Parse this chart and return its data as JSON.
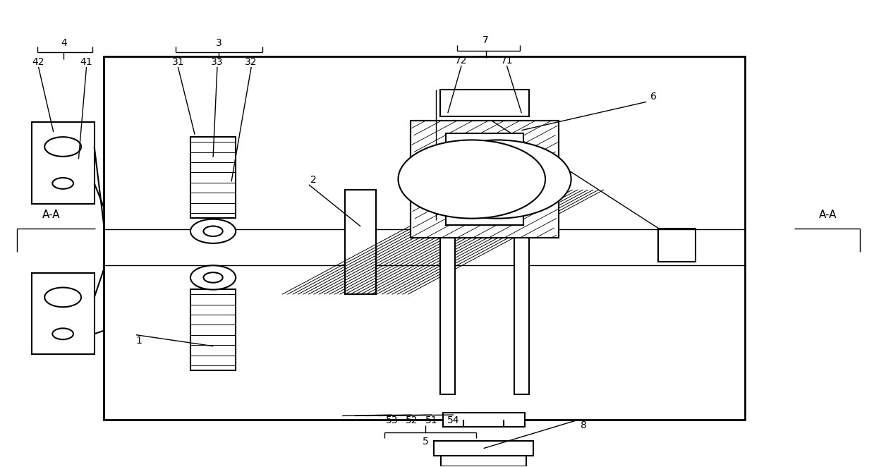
{
  "bg_color": "#ffffff",
  "line_color": "#000000",
  "fig_width": 12.39,
  "fig_height": 6.62,
  "mx": 0.118,
  "my": 0.1,
  "mw": 0.735,
  "mh": 0.78
}
